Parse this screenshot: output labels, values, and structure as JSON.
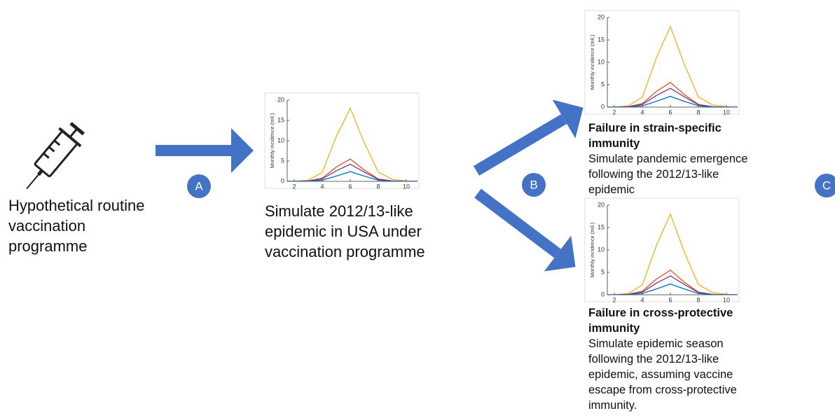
{
  "steps": [
    {
      "text": "Hypothetical routine vaccination programme"
    },
    {
      "text": "Simulate 2012/13-like epidemic in USA under vaccination programme"
    }
  ],
  "outcomes": [
    {
      "title": "Failure in strain-specific immunity",
      "text": "Simulate pandemic emergence following the 2012/13-like epidemic"
    },
    {
      "title": "Failure in cross-protective immunity",
      "text": "Simulate epidemic season following the 2012/13-like epidemic, assuming vaccine escape from cross-protective immunity."
    }
  ],
  "markers": [
    "A",
    "B",
    "C"
  ],
  "charts": [
    {
      "type": "line",
      "ylabel": "Monthly incidence (mil.)",
      "x": [
        1,
        2,
        3,
        4,
        5,
        6,
        7,
        8,
        9,
        10,
        11
      ],
      "xlim": [
        1.5,
        10.8
      ],
      "xticks": [
        2,
        4,
        6,
        8,
        10
      ],
      "ylim": [
        0,
        20
      ],
      "yticks": [
        0,
        5,
        10,
        15,
        20
      ],
      "series": [
        {
          "color": "#EDB120",
          "values": [
            0,
            0,
            0.3,
            2.2,
            11,
            18,
            9.5,
            2.3,
            0.5,
            0.1,
            0
          ]
        },
        {
          "color": "#D95319",
          "values": [
            0,
            0,
            0.1,
            0.8,
            3.5,
            5.5,
            2.8,
            0.6,
            0.1,
            0,
            0
          ]
        },
        {
          "color": "#7E2F8E",
          "values": [
            0,
            0,
            0.1,
            0.6,
            2.6,
            4.2,
            2.3,
            0.5,
            0.1,
            0,
            0
          ]
        },
        {
          "color": "#0072BD",
          "values": [
            0,
            0,
            0,
            0.3,
            1.3,
            2.4,
            1.3,
            0.3,
            0,
            0,
            0
          ]
        }
      ]
    },
    {
      "type": "line",
      "ylabel": "Monthly incidence (mil.)",
      "x": [
        1,
        2,
        3,
        4,
        5,
        6,
        7,
        8,
        9,
        10,
        11
      ],
      "xlim": [
        1.5,
        10.8
      ],
      "xticks": [
        2,
        4,
        6,
        8,
        10
      ],
      "ylim": [
        0,
        20
      ],
      "yticks": [
        0,
        5,
        10,
        15,
        20
      ],
      "series": [
        {
          "color": "#EDB120",
          "values": [
            0,
            0,
            0.3,
            2.2,
            11,
            18,
            9.5,
            2.3,
            0.5,
            0.1,
            0
          ]
        },
        {
          "color": "#D95319",
          "values": [
            0,
            0,
            0.1,
            0.8,
            3.5,
            5.5,
            2.8,
            0.6,
            0.1,
            0,
            0
          ]
        },
        {
          "color": "#7E2F8E",
          "values": [
            0,
            0,
            0.1,
            0.6,
            2.6,
            4.2,
            2.3,
            0.5,
            0.1,
            0,
            0
          ]
        },
        {
          "color": "#0072BD",
          "values": [
            0,
            0,
            0,
            0.3,
            1.3,
            2.4,
            1.3,
            0.3,
            0,
            0,
            0
          ]
        }
      ]
    },
    {
      "type": "line",
      "ylabel": "Monthly incidence (mil.)",
      "x": [
        1,
        2,
        3,
        4,
        5,
        6,
        7,
        8,
        9,
        10,
        11
      ],
      "xlim": [
        1.5,
        10.8
      ],
      "xticks": [
        2,
        4,
        6,
        8,
        10
      ],
      "ylim": [
        0,
        20
      ],
      "yticks": [
        0,
        5,
        10,
        15,
        20
      ],
      "series": [
        {
          "color": "#EDB120",
          "values": [
            0,
            0,
            0.3,
            2.2,
            11,
            18,
            9.5,
            2.3,
            0.5,
            0.1,
            0
          ]
        },
        {
          "color": "#D95319",
          "values": [
            0,
            0,
            0.1,
            0.8,
            3.5,
            5.5,
            2.8,
            0.6,
            0.1,
            0,
            0
          ]
        },
        {
          "color": "#7E2F8E",
          "values": [
            0,
            0,
            0.1,
            0.6,
            2.6,
            4.2,
            2.3,
            0.5,
            0.1,
            0,
            0
          ]
        },
        {
          "color": "#0072BD",
          "values": [
            0,
            0,
            0,
            0.3,
            1.3,
            2.4,
            1.3,
            0.3,
            0,
            0,
            0
          ]
        }
      ]
    }
  ]
}
